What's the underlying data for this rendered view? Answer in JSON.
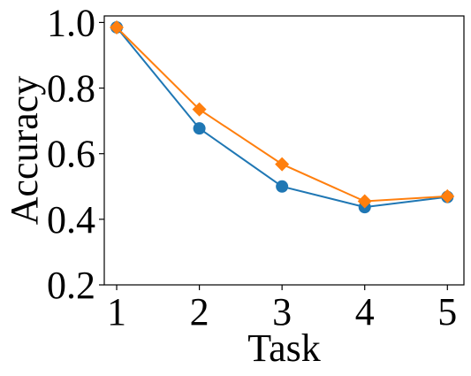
{
  "chart_data": {
    "type": "line",
    "title": "",
    "xlabel": "Task",
    "ylabel": "Accuracy",
    "x": [
      1,
      2,
      3,
      4,
      5
    ],
    "xlim": [
      0.85,
      5.2
    ],
    "ylim": [
      0.2,
      1.02
    ],
    "xticks": [
      "1",
      "2",
      "3",
      "4",
      "5"
    ],
    "yticks": [
      "0.2",
      "0.4",
      "0.6",
      "0.8",
      "1.0"
    ],
    "grid": false,
    "legend": "none",
    "series": [
      {
        "color": "#1f77b4",
        "marker": "circle",
        "values": [
          0.985,
          0.677,
          0.5,
          0.437,
          0.468
        ]
      },
      {
        "color": "#ff7f0e",
        "marker": "diamond",
        "values": [
          0.985,
          0.735,
          0.568,
          0.455,
          0.47
        ]
      }
    ]
  }
}
